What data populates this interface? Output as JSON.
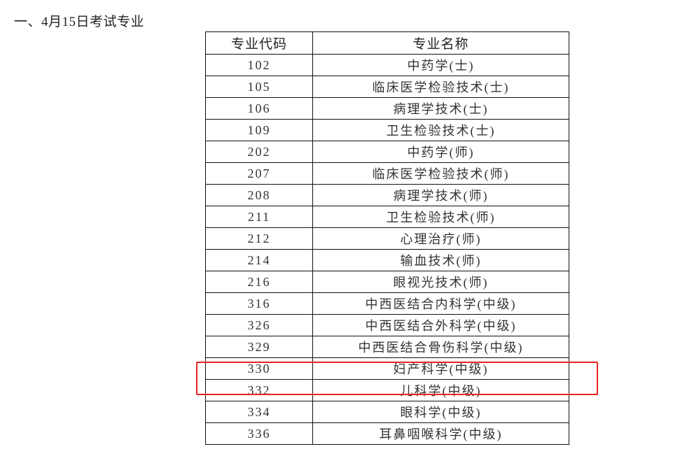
{
  "heading": "一、4月15日考试专业",
  "table": {
    "headers": [
      "专业代码",
      "专业名称"
    ],
    "rows": [
      [
        "102",
        "中药学(士)"
      ],
      [
        "105",
        "临床医学检验技术(士)"
      ],
      [
        "106",
        "病理学技术(士)"
      ],
      [
        "109",
        "卫生检验技术(士)"
      ],
      [
        "202",
        "中药学(师)"
      ],
      [
        "207",
        "临床医学检验技术(师)"
      ],
      [
        "208",
        "病理学技术(师)"
      ],
      [
        "211",
        "卫生检验技术(师)"
      ],
      [
        "212",
        "心理治疗(师)"
      ],
      [
        "214",
        "输血技术(师)"
      ],
      [
        "216",
        "眼视光技术(师)"
      ],
      [
        "316",
        "中西医结合内科学(中级)"
      ],
      [
        "326",
        "中西医结合外科学(中级)"
      ],
      [
        "329",
        "中西医结合骨伤科学(中级)"
      ],
      [
        "330",
        "妇产科学(中级)"
      ],
      [
        "332",
        "儿科学(中级)"
      ],
      [
        "334",
        "眼科学(中级)"
      ],
      [
        "336",
        "耳鼻咽喉科学(中级)"
      ]
    ]
  },
  "highlight": {
    "row_code": "330",
    "color": "#e8231f"
  }
}
